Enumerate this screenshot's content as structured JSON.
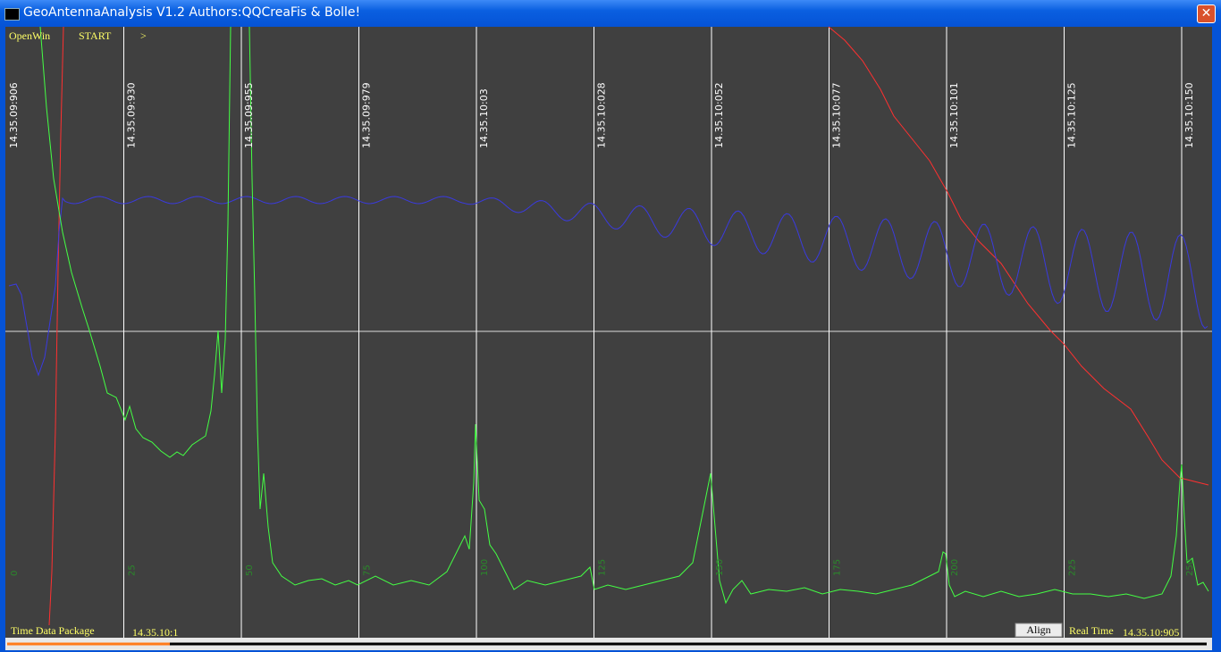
{
  "window": {
    "title": "GeoAntennaAnalysis V1.2 Authors:QQCreaFis & Bolle!"
  },
  "toolbar": {
    "buttons": [
      "OpenWin",
      "START",
      ">"
    ]
  },
  "plot": {
    "time_labels": [
      "14.35.09:906",
      "14.35.09:930",
      "14.35.09:955",
      "14.35.09:979",
      "14.35.10:03",
      "14.35.10:028",
      "14.35.10:052",
      "14.35.10:077",
      "14.35.10:101",
      "14.35.10:125",
      "14.35.10:150"
    ],
    "index_labels": [
      "0",
      "25",
      "50",
      "75",
      "100",
      "125",
      "150",
      "175",
      "200",
      "225",
      "250"
    ]
  },
  "status": {
    "package_label": "Time Data Package",
    "package_time": "14.35.10:1",
    "align_button": "Align",
    "realtime_label": "Real Time",
    "realtime_value": "14.35.10:905"
  }
}
